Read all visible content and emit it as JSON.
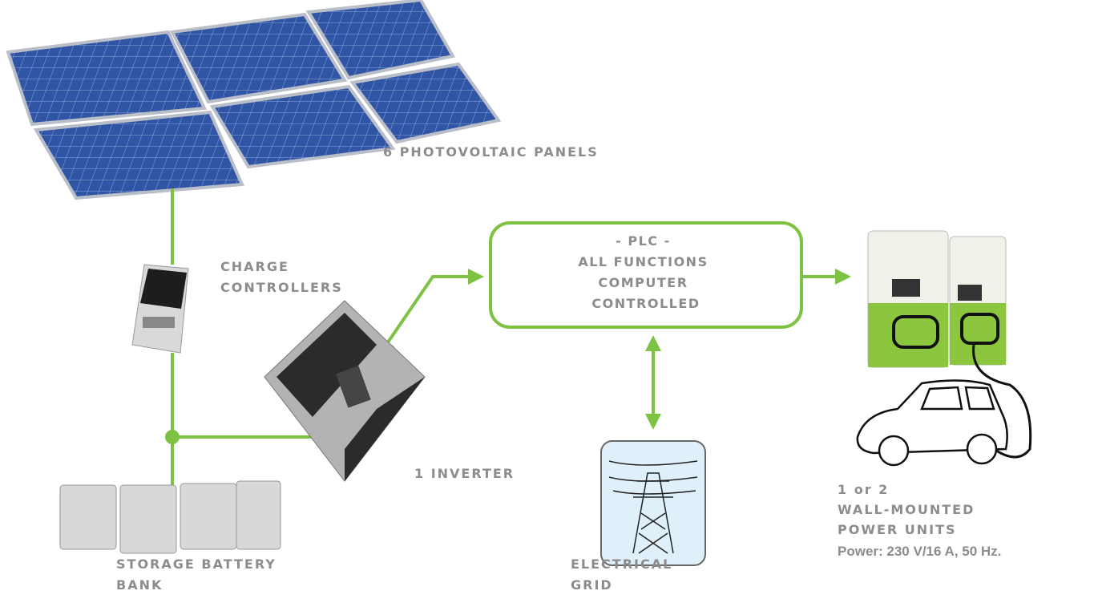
{
  "panels": {
    "label": "6 PHOTOVOLTAIC PANELS"
  },
  "charge_controllers": {
    "label_lines": [
      "CHARGE",
      "CONTROLLERS"
    ]
  },
  "plc": {
    "label_lines": [
      "- PLC -",
      "ALL FUNCTIONS",
      "COMPUTER",
      "CONTROLLED"
    ]
  },
  "inverter": {
    "label": "1 INVERTER"
  },
  "battery_bank": {
    "label_lines": [
      "STORAGE BATTERY",
      "BANK"
    ]
  },
  "electrical_grid": {
    "label_lines": [
      "ELECTRICAL",
      "GRID"
    ]
  },
  "power_units": {
    "label_lines": [
      "1 or 2",
      "WALL-MOUNTED",
      "POWER UNITS"
    ],
    "spec": "Power: 230 V/16 A, 50 Hz."
  }
}
